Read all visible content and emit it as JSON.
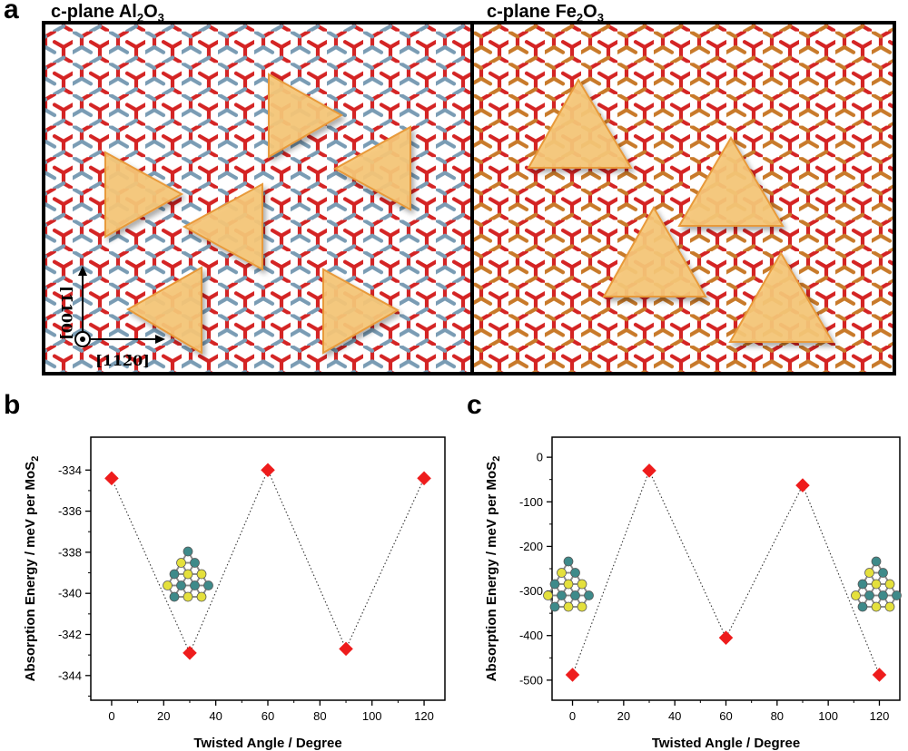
{
  "panel_a": {
    "letter": "a",
    "left": {
      "title_prefix": "c-plane Al",
      "sub1": "2",
      "mid": "O",
      "sub2": "3"
    },
    "right": {
      "title_prefix": "c-plane Fe",
      "sub1": "2",
      "mid": "O",
      "sub2": "3"
    },
    "axis_v_label": "[1̄100]",
    "axis_h_label": "[112̄0]",
    "colors": {
      "oxygen": "#d42424",
      "aluminum": "#7a9cb4",
      "iron": "#c87a2a",
      "flake": "#f6c777",
      "flake_edge": "#e89a3a"
    }
  },
  "chart_data": [
    {
      "type": "scatter",
      "letter": "b",
      "title": "",
      "xlabel": "Twisted Angle / Degree",
      "ylabel_prefix": "Absorption Energy / meV per MoS",
      "ylabel_sub": "2",
      "x": [
        0,
        30,
        60,
        90,
        120
      ],
      "y": [
        -334.4,
        -342.9,
        -334.0,
        -342.7,
        -334.4
      ],
      "xlim": [
        -8,
        128
      ],
      "ylim": [
        -345.2,
        -332.4
      ],
      "xticks": [
        0,
        20,
        40,
        60,
        80,
        100,
        120
      ],
      "xtick_labels": [
        "0",
        "20",
        "40",
        "60",
        "80",
        "100",
        "120"
      ],
      "yticks": [
        -334,
        -336,
        -338,
        -340,
        -342,
        -344
      ],
      "ytick_labels": [
        "-334",
        "-336",
        "-338",
        "-340",
        "-342",
        "-344"
      ],
      "marker_color": "#ee1c1c",
      "line_style": "dotted"
    },
    {
      "type": "scatter",
      "letter": "c",
      "title": "",
      "xlabel": "Twisted Angle / Degree",
      "ylabel_prefix": "Absorption Energy / meV per MoS",
      "ylabel_sub": "2",
      "x": [
        0,
        30,
        60,
        90,
        120
      ],
      "y": [
        -488,
        -30,
        -405,
        -63,
        -488
      ],
      "xlim": [
        -8,
        128
      ],
      "ylim": [
        -545,
        45
      ],
      "xticks": [
        0,
        20,
        40,
        60,
        80,
        100,
        120
      ],
      "xtick_labels": [
        "0",
        "20",
        "40",
        "60",
        "80",
        "100",
        "120"
      ],
      "yticks": [
        0,
        -100,
        -200,
        -300,
        -400,
        -500
      ],
      "ytick_labels": [
        "0",
        "-100",
        "-200",
        "-300",
        "-400",
        "-500"
      ],
      "marker_color": "#ee1c1c",
      "line_style": "dotted"
    }
  ]
}
